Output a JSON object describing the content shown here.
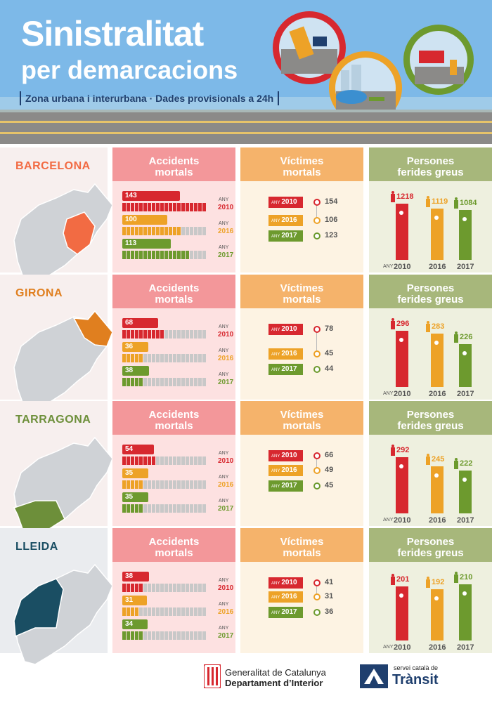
{
  "header": {
    "title_line1": "Sinistralitat",
    "title_line2": "per demarcacions",
    "subtitle": "Zona urbana i interurbana · Dades provisionals a 24h"
  },
  "columns": {
    "accidents": "Accidents mortals",
    "victims": "Víctimes mortals",
    "injured": "Persones ferides greus"
  },
  "labels": {
    "any": "ANY"
  },
  "colors": {
    "y2010": "#d7282f",
    "y2016": "#eda227",
    "y2017": "#6d9a2e",
    "accHead": "#f3979a",
    "vicHead": "#f5b36b",
    "injHead": "#a7b77b",
    "accBg": "#fde1e1",
    "vicBg": "#fdf3e3",
    "injBg": "#eef0df"
  },
  "regions": [
    {
      "name": "BARCELONA",
      "color": "#f26b43",
      "accidents": [
        {
          "year": "2010",
          "value": 143
        },
        {
          "year": "2016",
          "value": 100
        },
        {
          "year": "2017",
          "value": 113
        }
      ],
      "victims": [
        {
          "year": "2010",
          "value": 154
        },
        {
          "year": "2016",
          "value": 106
        },
        {
          "year": "2017",
          "value": 123
        }
      ],
      "injured": [
        {
          "year": "2010",
          "value": 1218
        },
        {
          "year": "2016",
          "value": 1119
        },
        {
          "year": "2017",
          "value": 1084
        }
      ]
    },
    {
      "name": "GIRONA",
      "color": "#e07f1f",
      "accidents": [
        {
          "year": "2010",
          "value": 68
        },
        {
          "year": "2016",
          "value": 36
        },
        {
          "year": "2017",
          "value": 38
        }
      ],
      "victims": [
        {
          "year": "2010",
          "value": 78
        },
        {
          "year": "2016",
          "value": 45
        },
        {
          "year": "2017",
          "value": 44
        }
      ],
      "injured": [
        {
          "year": "2010",
          "value": 296
        },
        {
          "year": "2016",
          "value": 283
        },
        {
          "year": "2017",
          "value": 226
        }
      ]
    },
    {
      "name": "TARRAGONA",
      "color": "#6d8f3a",
      "accidents": [
        {
          "year": "2010",
          "value": 54
        },
        {
          "year": "2016",
          "value": 35
        },
        {
          "year": "2017",
          "value": 35
        }
      ],
      "victims": [
        {
          "year": "2010",
          "value": 66
        },
        {
          "year": "2016",
          "value": 49
        },
        {
          "year": "2017",
          "value": 45
        }
      ],
      "injured": [
        {
          "year": "2010",
          "value": 292
        },
        {
          "year": "2016",
          "value": 245
        },
        {
          "year": "2017",
          "value": 222
        }
      ]
    },
    {
      "name": "LLEIDA",
      "color": "#1a4e63",
      "accidents": [
        {
          "year": "2010",
          "value": 38
        },
        {
          "year": "2016",
          "value": 31
        },
        {
          "year": "2017",
          "value": 34
        }
      ],
      "victims": [
        {
          "year": "2010",
          "value": 41
        },
        {
          "year": "2016",
          "value": 31
        },
        {
          "year": "2017",
          "value": 36
        }
      ],
      "injured": [
        {
          "year": "2010",
          "value": 201
        },
        {
          "year": "2016",
          "value": 192
        },
        {
          "year": "2017",
          "value": 210
        }
      ]
    }
  ],
  "footer": {
    "gencat_line1": "Generalitat de Catalunya",
    "gencat_line2": "Departament d’Interior",
    "transit_small": "servei català de",
    "transit_big": "Trànsit"
  }
}
